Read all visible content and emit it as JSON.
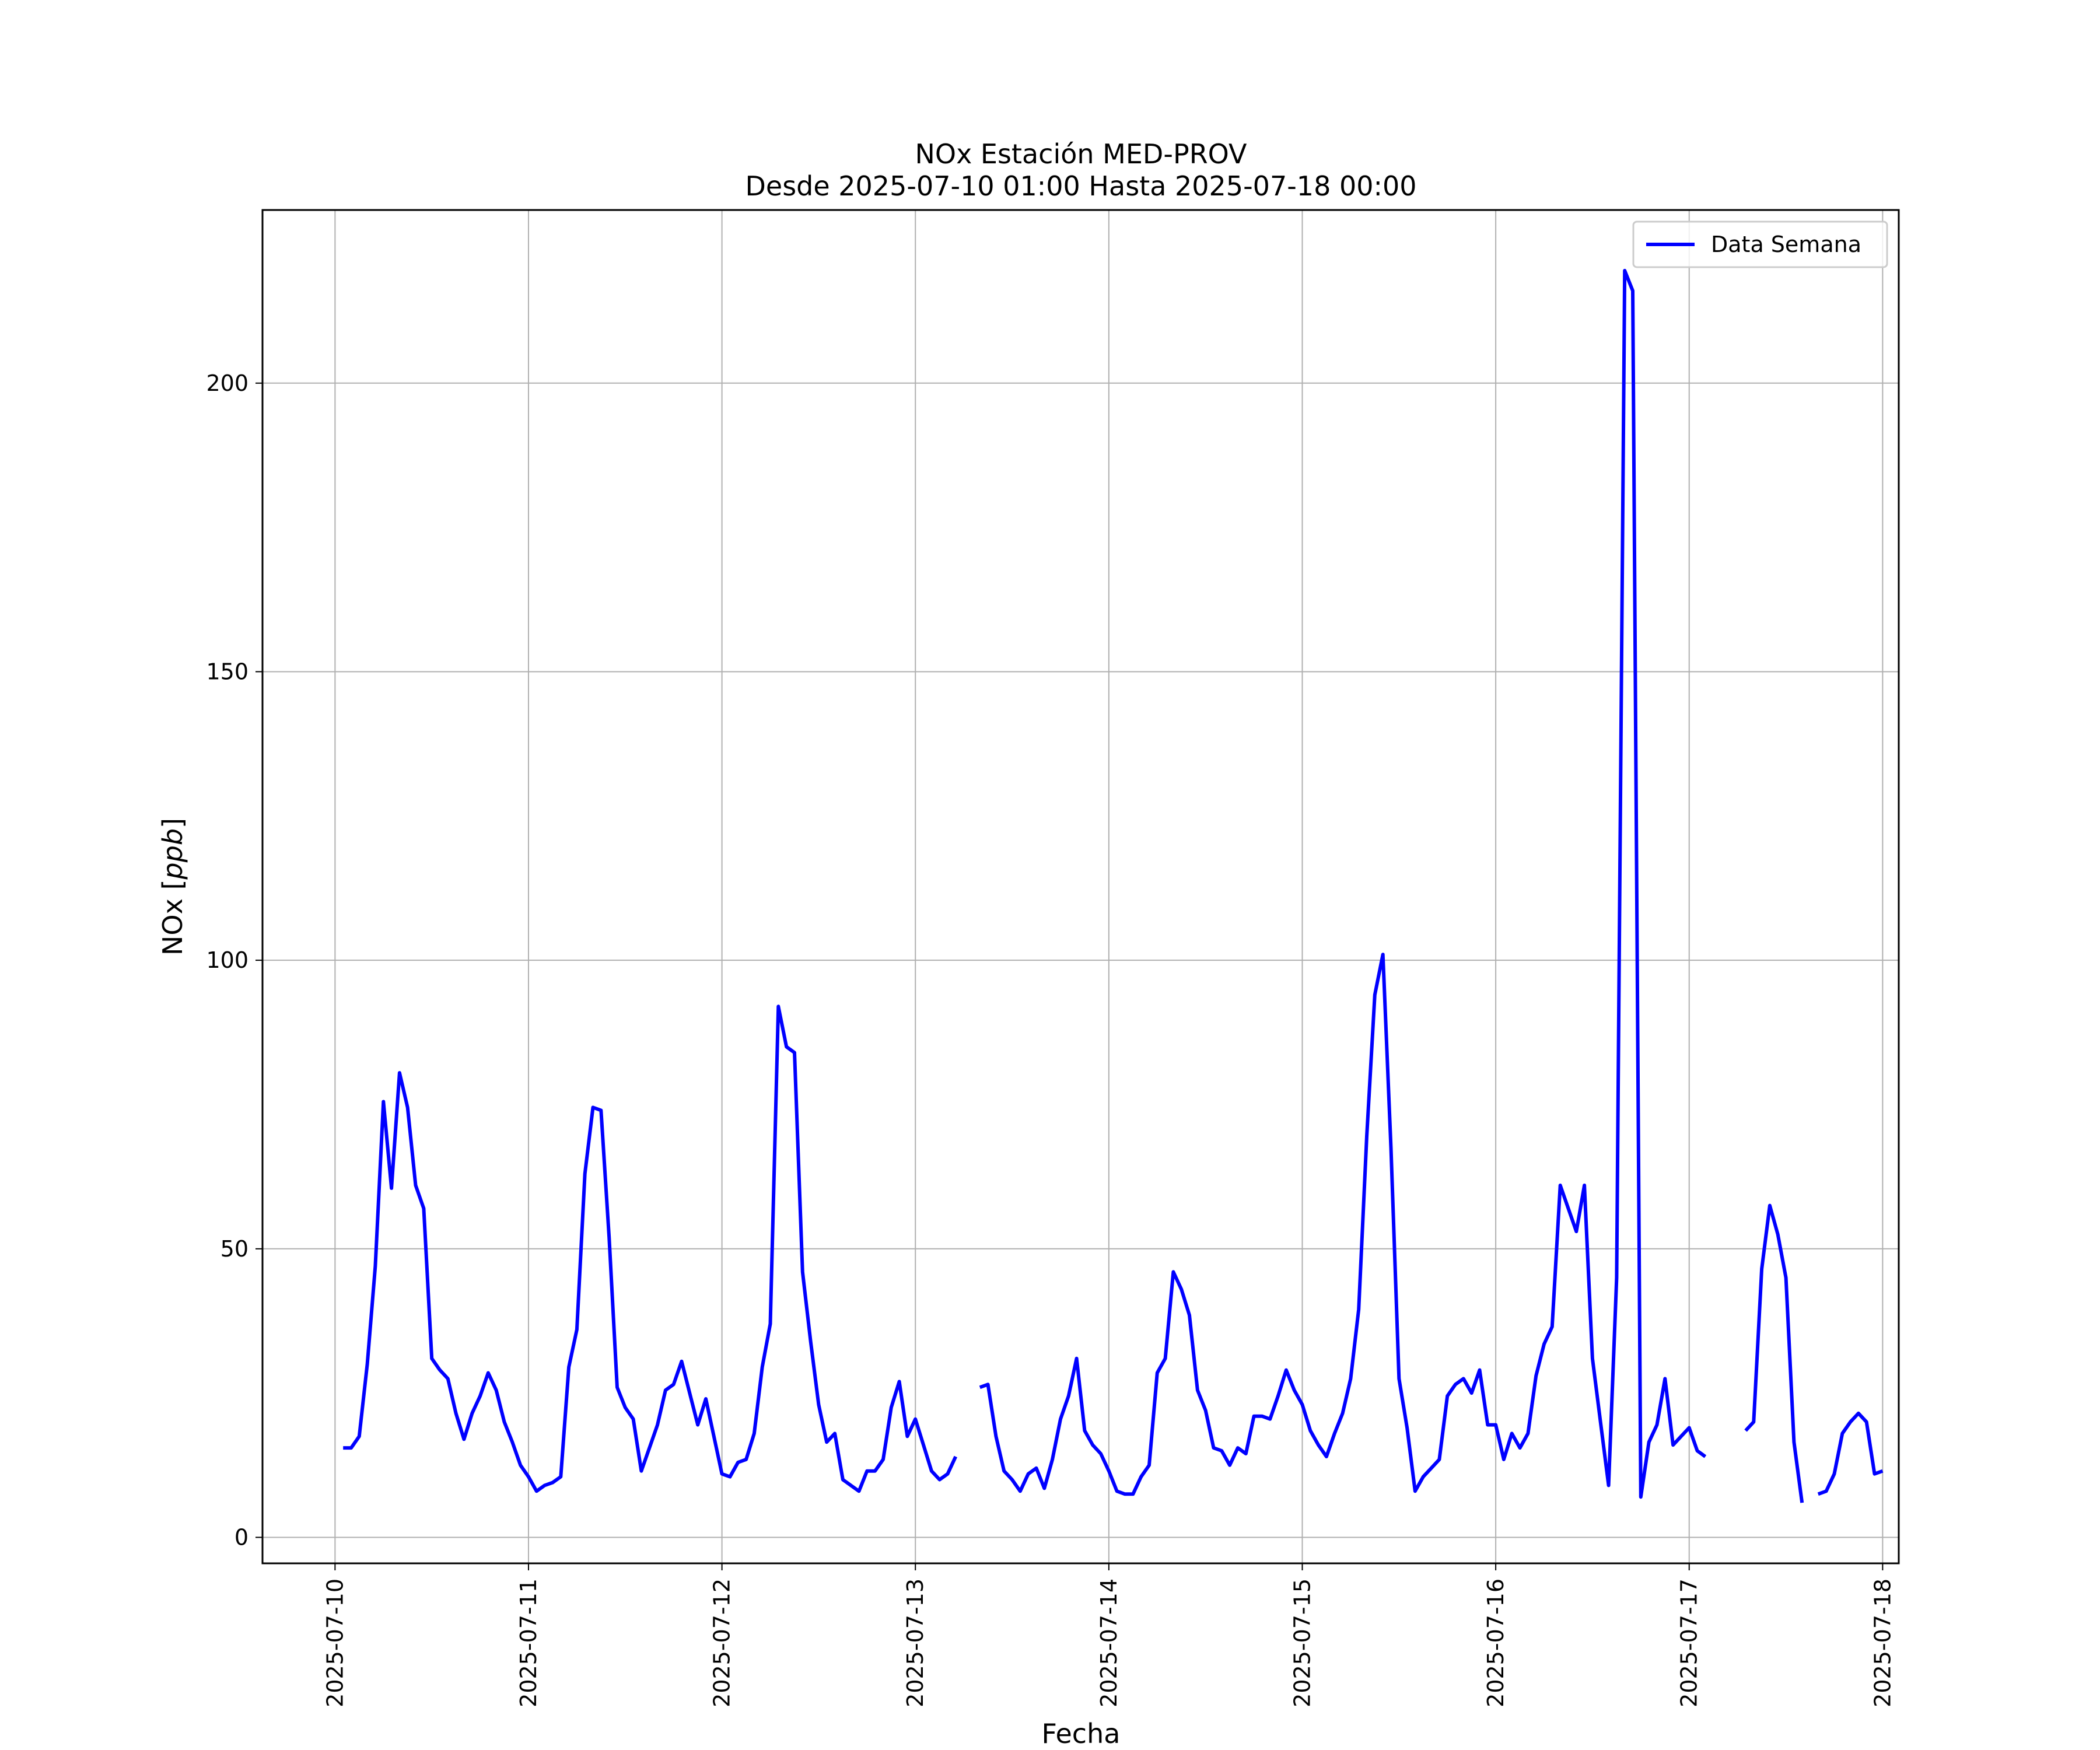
{
  "chart_data": {
    "type": "line",
    "title": "NOx Estación MED-PROV",
    "subtitle": "Desde 2025-07-10 01:00 Hasta 2025-07-18 00:00",
    "xlabel": "Fecha",
    "ylabel": "NOx [ppb]",
    "ylim": [
      -4.5,
      230
    ],
    "xlim": [
      "2025-07-09 15:00",
      "2025-07-18 02:00"
    ],
    "x_ticks": [
      "2025-07-10",
      "2025-07-11",
      "2025-07-12",
      "2025-07-13",
      "2025-07-14",
      "2025-07-15",
      "2025-07-16",
      "2025-07-17",
      "2025-07-18"
    ],
    "y_ticks": [
      0,
      50,
      100,
      150,
      200
    ],
    "grid": true,
    "legend_position": "top-right",
    "series": [
      {
        "name": "Data Semana",
        "color": "#0000ff",
        "start": "2025-07-10 01:00",
        "step_hours": 1,
        "values": [
          15.5,
          15.5,
          17.5,
          30,
          47,
          75.5,
          60.5,
          80.5,
          74.5,
          61,
          57,
          31,
          29,
          27.5,
          21.5,
          17,
          21.5,
          24.5,
          28.5,
          25.5,
          20,
          16.5,
          12.5,
          10.5,
          8,
          9,
          9.5,
          10.5,
          29.5,
          36,
          63,
          74.5,
          74,
          52,
          26,
          22.5,
          20.5,
          11.5,
          15.5,
          19.5,
          25.5,
          26.5,
          30.5,
          25,
          19.5,
          24,
          17.5,
          11,
          10.5,
          13,
          13.5,
          18,
          29.5,
          37,
          92,
          85,
          84,
          46,
          34,
          23,
          16.5,
          18,
          10,
          9,
          8,
          11.5,
          11.5,
          13.5,
          22.5,
          27,
          17.5,
          20.5,
          16,
          11.5,
          10,
          11,
          14,
          null,
          null,
          26,
          26.5,
          17.5,
          11.5,
          10,
          8,
          11,
          12,
          8.5,
          13.5,
          20.5,
          24.5,
          31,
          18.5,
          16,
          14.5,
          11.5,
          8,
          7.5,
          7.5,
          10.5,
          12.5,
          28.5,
          31,
          46,
          43,
          38.5,
          25.5,
          22,
          15.5,
          15,
          12.5,
          15.5,
          14.5,
          21,
          21,
          20.5,
          24.5,
          29,
          25.5,
          23,
          18.5,
          16,
          14,
          18,
          21.5,
          27.5,
          39.5,
          69.5,
          94,
          101,
          67.5,
          27.5,
          19,
          8,
          10.5,
          12,
          13.5,
          24.5,
          26.5,
          27.5,
          25,
          29,
          19.5,
          19.5,
          13.5,
          18,
          15.5,
          18,
          28,
          33.5,
          36.5,
          61,
          57,
          53,
          61,
          31,
          20,
          9,
          45,
          219.5,
          216,
          7,
          16.5,
          19.5,
          27.5,
          16,
          17.5,
          19,
          15,
          14,
          null,
          null,
          null,
          null,
          18.5,
          20,
          46.5,
          57.5,
          52.5,
          45,
          16.5,
          6,
          null,
          7.5,
          8,
          11,
          18,
          20,
          21.5,
          20,
          11,
          11.5
        ]
      }
    ]
  }
}
